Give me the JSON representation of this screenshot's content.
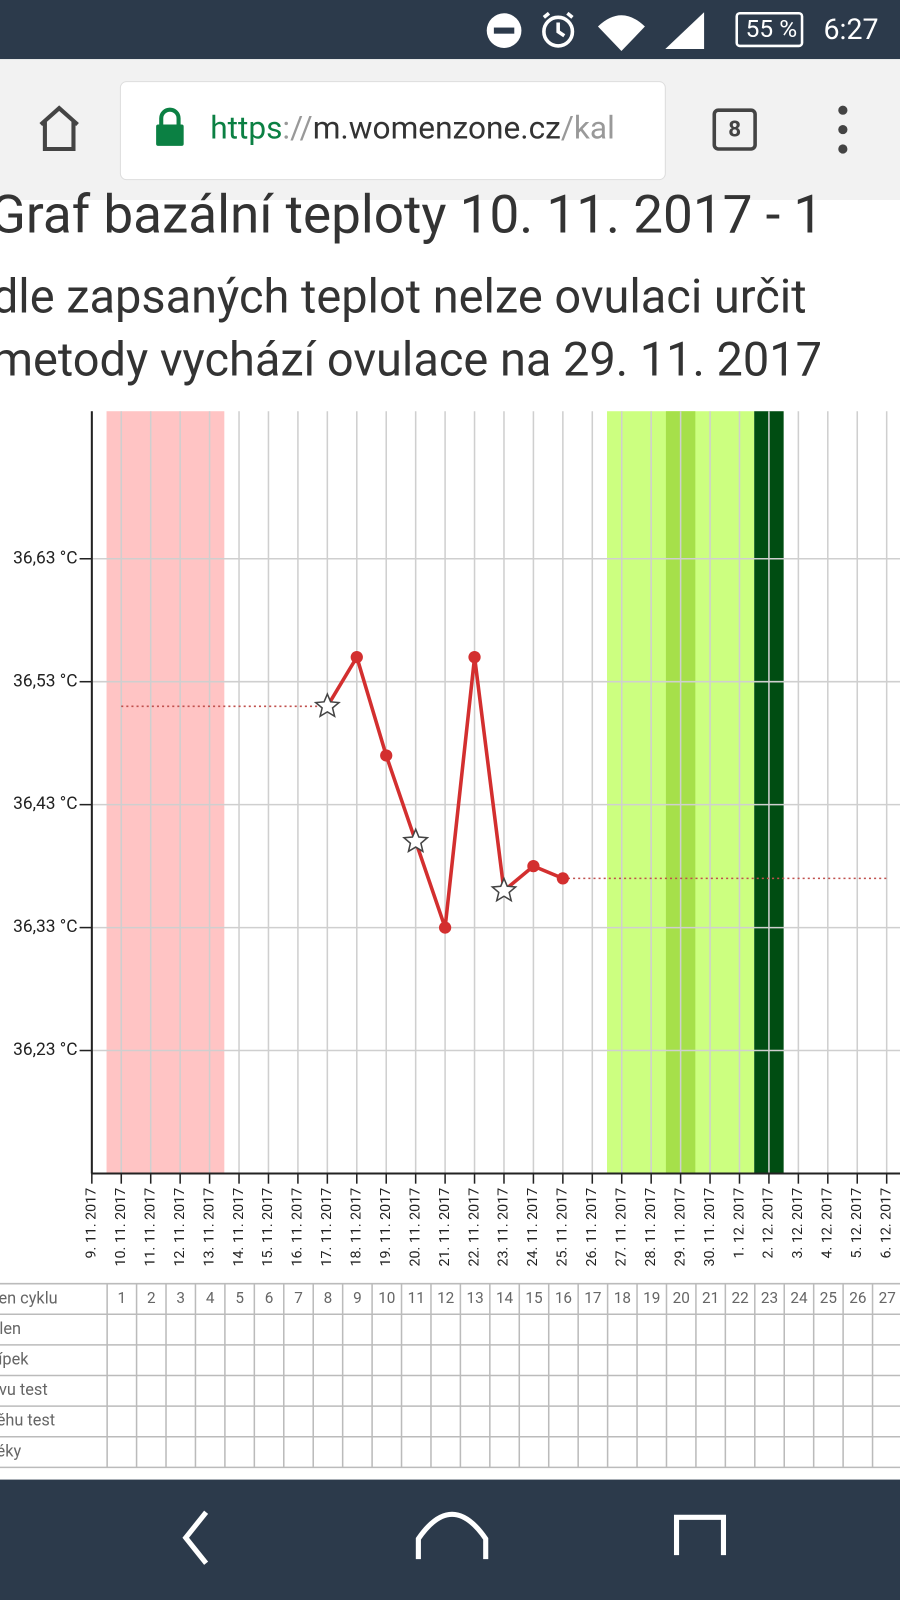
{
  "status_bar": {
    "battery": "55 %",
    "time": "6:27"
  },
  "browser": {
    "url": {
      "scheme": "https",
      "separator": "://",
      "host": "m.womenzone.cz",
      "path": "/kal"
    },
    "tab_count": "8"
  },
  "heading": {
    "title": "Graf bazální teploty 10. 11. 2017 - 1",
    "lines": [
      "dle zapsaných teplot nelze ovulaci určit",
      "metody vychází ovulace na 29. 11. 2017"
    ]
  },
  "chart_data": {
    "type": "line",
    "categories": [
      "9. 11. 2017",
      "10. 11. 2017",
      "11. 11. 2017",
      "12. 11. 2017",
      "13. 11. 2017",
      "14. 11. 2017",
      "15. 11. 2017",
      "16. 11. 2017",
      "17. 11. 2017",
      "18. 11. 2017",
      "19. 11. 2017",
      "20. 11. 2017",
      "21. 11. 2017",
      "22. 11. 2017",
      "23. 11. 2017",
      "24. 11. 2017",
      "25. 11. 2017",
      "26. 11. 2017",
      "27. 11. 2017",
      "28. 11. 2017",
      "29. 11. 2017",
      "30. 11. 2017",
      "1. 12. 2017",
      "2. 12. 2017",
      "3. 12. 2017",
      "4. 12. 2017",
      "5. 12. 2017",
      "6. 12. 2017"
    ],
    "series": [
      {
        "color": "#d32f2f",
        "values": [
          null,
          null,
          null,
          null,
          null,
          null,
          null,
          null,
          36.51,
          36.55,
          36.47,
          36.4,
          36.33,
          36.55,
          36.36,
          36.38,
          36.37,
          null,
          null,
          null,
          null,
          null,
          null,
          null,
          null,
          null,
          null,
          null
        ],
        "markers": [
          null,
          null,
          null,
          null,
          null,
          null,
          null,
          null,
          "star",
          "dot",
          "dot",
          "star",
          "dot",
          "dot",
          "star",
          "dot",
          "dot",
          null,
          null,
          null,
          null,
          null,
          null,
          null,
          null,
          null,
          null,
          null
        ]
      },
      {
        "color": "#c0504d",
        "style": "dotted",
        "values": [
          null,
          36.51,
          36.51,
          36.51,
          36.51,
          36.51,
          36.51,
          36.51,
          36.51,
          null,
          null,
          null,
          null,
          null,
          null,
          null,
          36.37,
          36.37,
          36.37,
          36.37,
          36.37,
          36.37,
          36.37,
          36.37,
          36.37,
          36.37,
          36.37,
          36.37
        ]
      }
    ],
    "ylim": [
      36.13,
      36.75
    ],
    "yticks": [
      {
        "value": 36.23,
        "label": "36,23 °C"
      },
      {
        "value": 36.33,
        "label": "36,33 °C"
      },
      {
        "value": 36.43,
        "label": "36,43 °C"
      },
      {
        "value": 36.53,
        "label": "36,53 °C"
      },
      {
        "value": 36.63,
        "label": "36,63 °C"
      }
    ],
    "bands": [
      {
        "from": 1,
        "to": 4,
        "color": "#ffc4c4"
      },
      {
        "from": 18,
        "to": 22,
        "color": "#ccff80"
      },
      {
        "from": 20,
        "to": 20,
        "color": "#a6e04a"
      },
      {
        "from": 23,
        "to": 23,
        "color": "#004d12"
      }
    ],
    "grid": true
  },
  "table": {
    "row_labels": [
      "Den cyklu",
      "Hlen",
      "Čípek",
      "Ovu test",
      "Těhu test",
      "Léky"
    ],
    "cycle_days": [
      1,
      2,
      3,
      4,
      5,
      6,
      7,
      8,
      9,
      10,
      11,
      12,
      13,
      14,
      15,
      16,
      17,
      18,
      19,
      20,
      21,
      22,
      23,
      24,
      25,
      26,
      27
    ]
  }
}
